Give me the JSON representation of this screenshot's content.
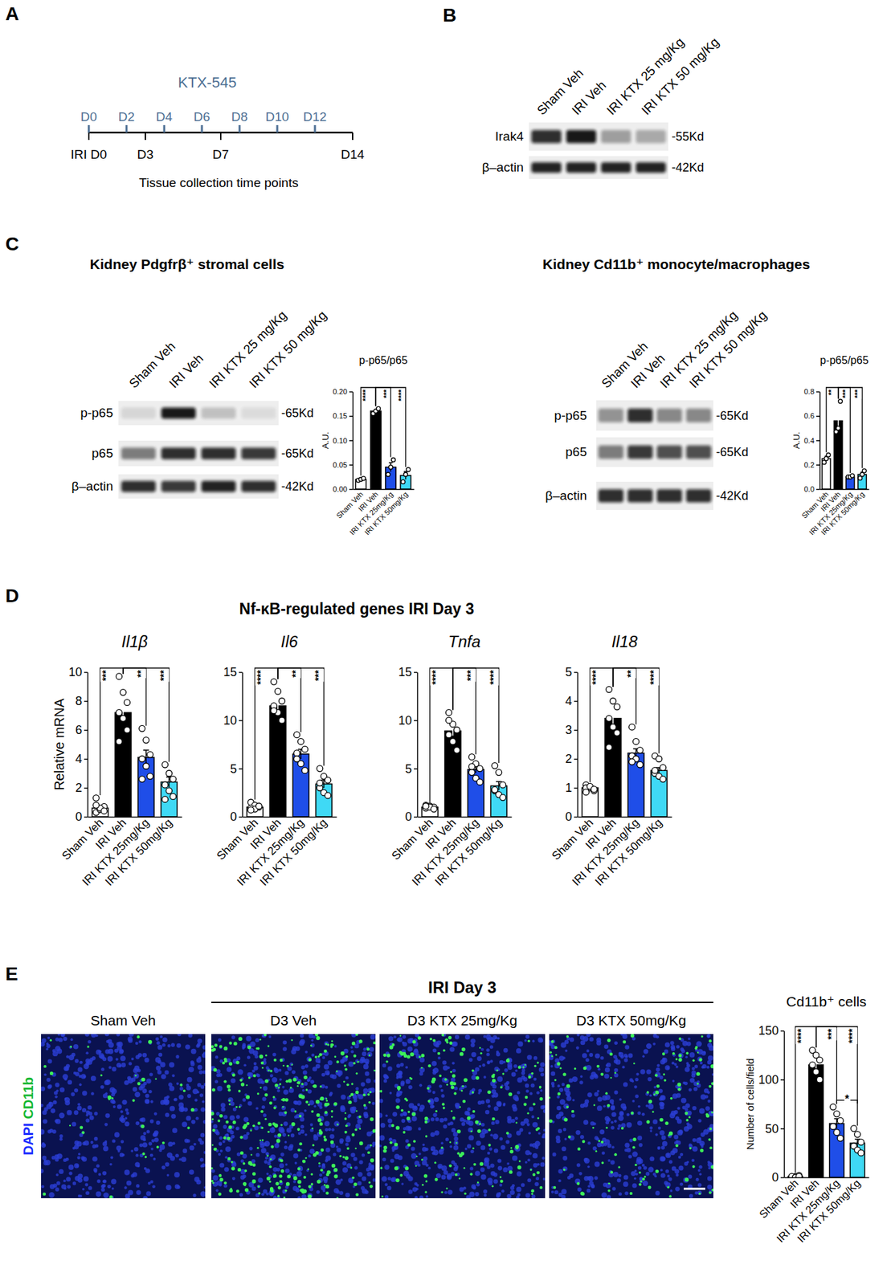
{
  "panel_labels": [
    "A",
    "B",
    "C",
    "D",
    "E"
  ],
  "timeline": {
    "drug": "KTX-545",
    "dose_days": [
      "D0",
      "D2",
      "D4",
      "D6",
      "D8",
      "D10",
      "D12"
    ],
    "dose_day_values": [
      0,
      2,
      4,
      6,
      8,
      10,
      12
    ],
    "collection_days": [
      "IRI D0",
      "D3",
      "D7",
      "D14"
    ],
    "collection_day_values": [
      0,
      3,
      7,
      14
    ],
    "day_range": [
      0,
      14
    ],
    "caption": "Tissue collection time points"
  },
  "blots": [
    {
      "lanes": [
        "Sham Veh",
        "IRI Veh",
        "IRI KTX 25 mg/Kg",
        "IRI KTX 50 mg/Kg"
      ],
      "rows": [
        {
          "label": "Irak4",
          "size": "-55Kd",
          "intensity": [
            0.85,
            0.95,
            0.35,
            0.3
          ]
        },
        {
          "label": "β–actin",
          "size": "-42Kd",
          "intensity": [
            0.9,
            0.9,
            0.9,
            0.9
          ]
        }
      ]
    },
    {
      "title": "Kidney Pdgfrβ⁺ stromal cells",
      "lanes": [
        "Sham Veh",
        "IRI Veh",
        "IRI KTX 25 mg/Kg",
        "IRI KTX 50 mg/Kg"
      ],
      "rows": [
        {
          "label": "p-p65",
          "size": "-65Kd",
          "intensity": [
            0.1,
            0.95,
            0.2,
            0.08
          ]
        },
        {
          "label": "p65",
          "size": "-65Kd",
          "intensity": [
            0.5,
            0.85,
            0.85,
            0.8
          ]
        },
        {
          "label": "β–actin",
          "size": "-42Kd",
          "intensity": [
            0.85,
            0.8,
            0.9,
            0.85
          ]
        }
      ]
    },
    {
      "title": "Kidney Cd11b⁺ monocyte/macrophages",
      "lanes": [
        "Sham Veh",
        "IRI Veh",
        "IRI KTX 25 mg/Kg",
        "IRI KTX 50 mg/Kg"
      ],
      "rows": [
        {
          "label": "p-p65",
          "size": "-65Kd",
          "intensity": [
            0.4,
            0.85,
            0.45,
            0.45
          ]
        },
        {
          "label": "p65",
          "size": "-65Kd",
          "intensity": [
            0.5,
            0.8,
            0.7,
            0.7
          ]
        },
        {
          "label": "β–actin",
          "size": "-42Kd",
          "intensity": [
            0.85,
            0.85,
            0.85,
            0.85
          ]
        }
      ]
    }
  ],
  "section_title": "Nf-κB-regulated genes IRI Day 3",
  "images": {
    "group_title": "IRI Day 3",
    "panels": [
      "Sham Veh",
      "D3 Veh",
      "D3 KTX 25mg/Kg",
      "D3 KTX 50mg/Kg"
    ],
    "channels": [
      "DAPI",
      "CD11b"
    ]
  },
  "chart_data": [
    {
      "type": "bar",
      "title": "p-p65/p65",
      "y_label": "A.U.",
      "categories": [
        "Sham Veh",
        "IRI Veh",
        "IRI KTX 25mg/Kg",
        "IRI KTX 50mg/Kg"
      ],
      "colors": [
        "#ffffff",
        "#000000",
        "#1f4ee8",
        "#3fd9f5"
      ],
      "values": [
        0.02,
        0.16,
        0.045,
        0.028
      ],
      "errors": [
        0.002,
        0.004,
        0.009,
        0.008
      ],
      "points": [
        [
          0.018,
          0.02,
          0.022
        ],
        [
          0.155,
          0.16,
          0.165
        ],
        [
          0.03,
          0.045,
          0.06
        ],
        [
          0.015,
          0.03,
          0.04
        ]
      ],
      "ylim": [
        0,
        0.2
      ],
      "yticks": [
        {
          "value": 0,
          "label": "0.00"
        },
        {
          "value": 0.05,
          "label": "0.05"
        },
        {
          "value": 0.1,
          "label": "0.10"
        },
        {
          "value": 0.15,
          "label": "0.15"
        },
        {
          "value": 0.2,
          "label": "0.20"
        }
      ],
      "significance": [
        {
          "groups": [
            0,
            1
          ],
          "label": "****"
        },
        {
          "groups": [
            1,
            2
          ],
          "label": "***"
        },
        {
          "groups": [
            1,
            3
          ],
          "label": "****"
        }
      ]
    },
    {
      "type": "bar",
      "title": "p-p65/p65",
      "y_label": "A.U.",
      "categories": [
        "Sham Veh",
        "IRI Veh",
        "IRI KTX 25mg/Kg",
        "IRI KTX 50mg/Kg"
      ],
      "colors": [
        "#ffffff",
        "#000000",
        "#1f4ee8",
        "#3fd9f5"
      ],
      "values": [
        0.25,
        0.56,
        0.1,
        0.12
      ],
      "errors": [
        0.02,
        0.08,
        0.005,
        0.02
      ],
      "points": [
        [
          0.22,
          0.25,
          0.28
        ],
        [
          0.47,
          0.5,
          0.72
        ],
        [
          0.1,
          0.1,
          0.11
        ],
        [
          0.09,
          0.12,
          0.15
        ]
      ],
      "ylim": [
        0,
        0.8
      ],
      "yticks": [
        {
          "value": 0,
          "label": "0.0"
        },
        {
          "value": 0.2,
          "label": "0.2"
        },
        {
          "value": 0.4,
          "label": "0.4"
        },
        {
          "value": 0.6,
          "label": "0.6"
        },
        {
          "value": 0.8,
          "label": "0.8"
        }
      ],
      "significance": [
        {
          "groups": [
            0,
            1
          ],
          "label": "**"
        },
        {
          "groups": [
            1,
            2
          ],
          "label": "***"
        },
        {
          "groups": [
            1,
            3
          ],
          "label": "***"
        }
      ]
    },
    {
      "type": "bar",
      "title": "Il1β",
      "y_label": "Relative mRNA",
      "categories": [
        "Sham Veh",
        "IRI Veh",
        "IRI KTX 25mg/Kg",
        "IRI KTX 50mg/Kg"
      ],
      "colors": [
        "#ffffff",
        "#000000",
        "#1f4ee8",
        "#3fd9f5"
      ],
      "values": [
        0.6,
        7.2,
        4.1,
        2.4
      ],
      "errors": [
        0.15,
        0.6,
        0.5,
        0.35
      ],
      "points": [
        [
          0.3,
          0.5,
          0.7,
          1.3,
          0.6,
          0.4,
          0.8
        ],
        [
          9.7,
          8.6,
          7.9,
          7.2,
          6.8,
          6.0,
          5.2
        ],
        [
          6.1,
          5.3,
          4.3,
          4.0,
          3.5,
          2.8,
          2.6
        ],
        [
          3.6,
          3.0,
          2.6,
          2.2,
          1.8,
          1.4,
          1.2
        ]
      ],
      "ylim": [
        0,
        10
      ],
      "yticks": [
        0,
        2,
        4,
        6,
        8,
        10
      ],
      "significance": [
        {
          "groups": [
            0,
            1
          ],
          "label": "***"
        },
        {
          "groups": [
            1,
            2
          ],
          "label": "**"
        },
        {
          "groups": [
            1,
            3
          ],
          "label": "***"
        }
      ]
    },
    {
      "type": "bar",
      "title": "Il6",
      "categories": [
        "Sham Veh",
        "IRI Veh",
        "IRI KTX 25mg/Kg",
        "IRI KTX 50mg/Kg"
      ],
      "colors": [
        "#ffffff",
        "#000000",
        "#1f4ee8",
        "#3fd9f5"
      ],
      "values": [
        1.0,
        11.5,
        6.5,
        3.4
      ],
      "errors": [
        0.1,
        0.5,
        0.5,
        0.4
      ],
      "points": [
        [
          1.5,
          1.2,
          1.0,
          0.9,
          0.8,
          1.1,
          0.7
        ],
        [
          14.0,
          13.0,
          12.0,
          11.5,
          10.8,
          10.0,
          11.0
        ],
        [
          8.5,
          7.8,
          7.0,
          6.6,
          5.5,
          4.8,
          6.0
        ],
        [
          5.0,
          4.2,
          3.8,
          3.0,
          2.5,
          2.2,
          3.5
        ]
      ],
      "ylim": [
        0,
        15
      ],
      "yticks": [
        0,
        5,
        10,
        15
      ],
      "significance": [
        {
          "groups": [
            0,
            1
          ],
          "label": "****"
        },
        {
          "groups": [
            1,
            2
          ],
          "label": "**"
        },
        {
          "groups": [
            1,
            3
          ],
          "label": "***"
        }
      ]
    },
    {
      "type": "bar",
      "title": "Tnfa",
      "categories": [
        "Sham Veh",
        "IRI Veh",
        "IRI KTX 25mg/Kg",
        "IRI KTX 50mg/Kg"
      ],
      "colors": [
        "#ffffff",
        "#000000",
        "#1f4ee8",
        "#3fd9f5"
      ],
      "values": [
        1.0,
        8.9,
        4.9,
        3.2
      ],
      "errors": [
        0.05,
        0.5,
        0.35,
        0.45
      ],
      "points": [
        [
          1.2,
          1.1,
          1.0,
          0.9,
          1.0,
          0.8,
          1.1
        ],
        [
          10.8,
          9.6,
          9.0,
          8.5,
          7.8,
          6.9,
          10.0
        ],
        [
          6.2,
          5.5,
          5.0,
          4.6,
          4.0,
          3.6,
          5.2
        ],
        [
          5.3,
          4.6,
          3.3,
          2.7,
          2.3,
          2.0,
          2.8
        ]
      ],
      "ylim": [
        0,
        15
      ],
      "yticks": [
        0,
        5,
        10,
        15
      ],
      "significance": [
        {
          "groups": [
            0,
            1
          ],
          "label": "****"
        },
        {
          "groups": [
            1,
            2
          ],
          "label": "***"
        },
        {
          "groups": [
            1,
            3
          ],
          "label": "****"
        }
      ]
    },
    {
      "type": "bar",
      "title": "Il18",
      "categories": [
        "Sham Veh",
        "IRI Veh",
        "IRI KTX 25mg/Kg",
        "IRI KTX 50mg/Kg"
      ],
      "colors": [
        "#ffffff",
        "#000000",
        "#1f4ee8",
        "#3fd9f5"
      ],
      "values": [
        1.0,
        3.4,
        2.2,
        1.6
      ],
      "errors": [
        0.04,
        0.25,
        0.15,
        0.1
      ],
      "points": [
        [
          1.1,
          1.0,
          0.9,
          1.0,
          1.05,
          0.95,
          0.85
        ],
        [
          4.4,
          4.0,
          3.8,
          3.4,
          3.1,
          2.9,
          2.4
        ],
        [
          3.1,
          2.6,
          2.3,
          2.1,
          2.0,
          1.8,
          1.9
        ],
        [
          2.1,
          2.0,
          1.7,
          1.5,
          1.4,
          1.3,
          1.6
        ]
      ],
      "ylim": [
        0,
        5
      ],
      "yticks": [
        0,
        1,
        2,
        3,
        4,
        5
      ],
      "significance": [
        {
          "groups": [
            0,
            1
          ],
          "label": "****"
        },
        {
          "groups": [
            1,
            2
          ],
          "label": "**"
        },
        {
          "groups": [
            1,
            3
          ],
          "label": "****"
        }
      ]
    },
    {
      "type": "bar",
      "title": "Cd11b⁺ cells",
      "y_label": "Number of cells/field",
      "categories": [
        "Sham Veh",
        "IRI Veh",
        "IRI KTX 25mg/Kg",
        "IRI KTX 50mg/Kg"
      ],
      "colors": [
        "#ffffff",
        "#000000",
        "#1f4ee8",
        "#3fd9f5"
      ],
      "values": [
        1,
        115,
        55,
        35
      ],
      "errors": [
        0.5,
        5,
        5,
        4
      ],
      "points": [
        [
          0,
          1,
          2,
          1,
          0,
          1
        ],
        [
          130,
          125,
          120,
          115,
          108,
          100
        ],
        [
          72,
          65,
          58,
          52,
          46,
          40
        ],
        [
          50,
          44,
          36,
          32,
          28,
          25
        ]
      ],
      "ylim": [
        0,
        150
      ],
      "yticks": [
        0,
        50,
        100,
        150
      ],
      "significance": [
        {
          "groups": [
            0,
            1
          ],
          "label": "****"
        },
        {
          "groups": [
            1,
            2
          ],
          "label": "***"
        },
        {
          "groups": [
            1,
            3
          ],
          "label": "****"
        },
        {
          "groups": [
            2,
            3
          ],
          "label": "*"
        }
      ]
    }
  ]
}
